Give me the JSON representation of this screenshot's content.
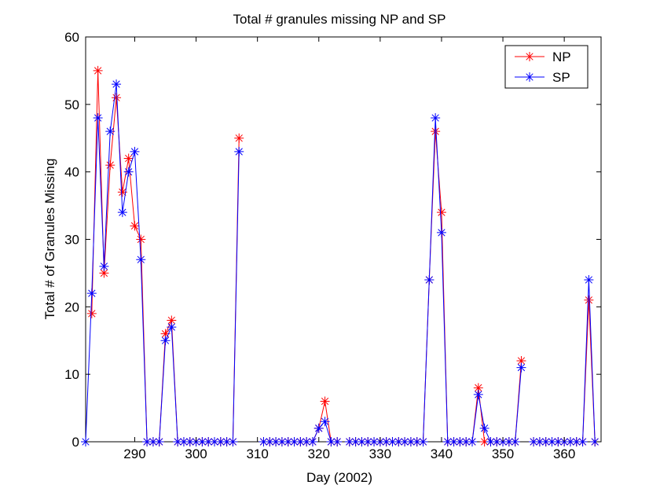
{
  "chart_data": {
    "type": "line",
    "title": "Total # granules missing NP and SP",
    "xlabel": "Day (2002)",
    "ylabel": "Total # of Granules Missing",
    "xlim": [
      282,
      366
    ],
    "ylim": [
      0,
      60
    ],
    "xticks": [
      290,
      300,
      310,
      320,
      330,
      340,
      350,
      360
    ],
    "yticks": [
      0,
      10,
      20,
      30,
      40,
      50,
      60
    ],
    "grid": false,
    "legend_position": "top-right",
    "series": [
      {
        "name": "NP",
        "color": "#ff0000",
        "marker": "asterisk",
        "segments": [
          [
            [
              283,
              19
            ],
            [
              284,
              55
            ],
            [
              285,
              25
            ],
            [
              286,
              41
            ],
            [
              287,
              51
            ],
            [
              288,
              37
            ],
            [
              289,
              42
            ],
            [
              290,
              32
            ],
            [
              291,
              30
            ],
            [
              292,
              0
            ],
            [
              293,
              0
            ],
            [
              294,
              0
            ],
            [
              295,
              16
            ],
            [
              296,
              18
            ],
            [
              297,
              0
            ],
            [
              298,
              0
            ],
            [
              299,
              0
            ],
            [
              300,
              0
            ],
            [
              301,
              0
            ],
            [
              302,
              0
            ],
            [
              303,
              0
            ],
            [
              304,
              0
            ],
            [
              305,
              0
            ],
            [
              306,
              0
            ],
            [
              307,
              45
            ]
          ],
          [
            [
              311,
              0
            ],
            [
              312,
              0
            ],
            [
              313,
              0
            ],
            [
              314,
              0
            ],
            [
              315,
              0
            ],
            [
              316,
              0
            ],
            [
              317,
              0
            ],
            [
              318,
              0
            ],
            [
              319,
              0
            ],
            [
              320,
              2
            ],
            [
              321,
              6
            ],
            [
              322,
              0
            ],
            [
              323,
              0
            ]
          ],
          [
            [
              325,
              0
            ],
            [
              326,
              0
            ],
            [
              327,
              0
            ],
            [
              328,
              0
            ],
            [
              329,
              0
            ],
            [
              330,
              0
            ],
            [
              331,
              0
            ],
            [
              332,
              0
            ],
            [
              333,
              0
            ],
            [
              334,
              0
            ],
            [
              335,
              0
            ],
            [
              336,
              0
            ],
            [
              337,
              0
            ],
            [
              338,
              24
            ],
            [
              339,
              46
            ],
            [
              340,
              34
            ],
            [
              341,
              0
            ],
            [
              342,
              0
            ],
            [
              343,
              0
            ],
            [
              344,
              0
            ],
            [
              345,
              0
            ],
            [
              346,
              8
            ],
            [
              347,
              0
            ],
            [
              348,
              0
            ],
            [
              349,
              0
            ],
            [
              350,
              0
            ],
            [
              351,
              0
            ],
            [
              352,
              0
            ],
            [
              353,
              12
            ]
          ],
          [
            [
              355,
              0
            ],
            [
              356,
              0
            ],
            [
              357,
              0
            ],
            [
              358,
              0
            ],
            [
              359,
              0
            ],
            [
              360,
              0
            ],
            [
              361,
              0
            ],
            [
              362,
              0
            ],
            [
              363,
              0
            ],
            [
              364,
              21
            ],
            [
              365,
              0
            ]
          ]
        ]
      },
      {
        "name": "SP",
        "color": "#0000ff",
        "marker": "asterisk",
        "segments": [
          [
            [
              282,
              0
            ],
            [
              283,
              22
            ],
            [
              284,
              48
            ],
            [
              285,
              26
            ],
            [
              286,
              46
            ],
            [
              287,
              53
            ],
            [
              288,
              34
            ],
            [
              289,
              40
            ],
            [
              290,
              43
            ],
            [
              291,
              27
            ],
            [
              292,
              0
            ],
            [
              293,
              0
            ],
            [
              294,
              0
            ],
            [
              295,
              15
            ],
            [
              296,
              17
            ],
            [
              297,
              0
            ],
            [
              298,
              0
            ],
            [
              299,
              0
            ],
            [
              300,
              0
            ],
            [
              301,
              0
            ],
            [
              302,
              0
            ],
            [
              303,
              0
            ],
            [
              304,
              0
            ],
            [
              305,
              0
            ],
            [
              306,
              0
            ],
            [
              307,
              43
            ]
          ],
          [
            [
              311,
              0
            ],
            [
              312,
              0
            ],
            [
              313,
              0
            ],
            [
              314,
              0
            ],
            [
              315,
              0
            ],
            [
              316,
              0
            ],
            [
              317,
              0
            ],
            [
              318,
              0
            ],
            [
              319,
              0
            ],
            [
              320,
              2
            ],
            [
              321,
              3
            ],
            [
              322,
              0
            ],
            [
              323,
              0
            ]
          ],
          [
            [
              325,
              0
            ],
            [
              326,
              0
            ],
            [
              327,
              0
            ],
            [
              328,
              0
            ],
            [
              329,
              0
            ],
            [
              330,
              0
            ],
            [
              331,
              0
            ],
            [
              332,
              0
            ],
            [
              333,
              0
            ],
            [
              334,
              0
            ],
            [
              335,
              0
            ],
            [
              336,
              0
            ],
            [
              337,
              0
            ],
            [
              338,
              24
            ],
            [
              339,
              48
            ],
            [
              340,
              31
            ],
            [
              341,
              0
            ],
            [
              342,
              0
            ],
            [
              343,
              0
            ],
            [
              344,
              0
            ],
            [
              345,
              0
            ],
            [
              346,
              7
            ],
            [
              347,
              2
            ],
            [
              348,
              0
            ],
            [
              349,
              0
            ],
            [
              350,
              0
            ],
            [
              351,
              0
            ],
            [
              352,
              0
            ],
            [
              353,
              11
            ]
          ],
          [
            [
              355,
              0
            ],
            [
              356,
              0
            ],
            [
              357,
              0
            ],
            [
              358,
              0
            ],
            [
              359,
              0
            ],
            [
              360,
              0
            ],
            [
              361,
              0
            ],
            [
              362,
              0
            ],
            [
              363,
              0
            ],
            [
              364,
              24
            ],
            [
              365,
              0
            ]
          ]
        ]
      }
    ]
  }
}
